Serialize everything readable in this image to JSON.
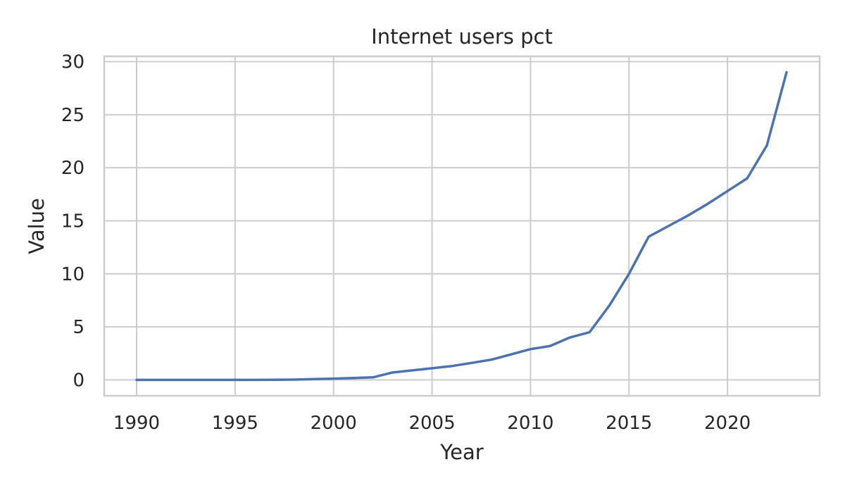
{
  "chart_data": {
    "type": "line",
    "title": "Internet users pct",
    "xlabel": "Year",
    "ylabel": "Value",
    "xlim": [
      1988.35,
      1825.65
    ],
    "ylim": [
      -1.5,
      30.5
    ],
    "xticks": [
      1990,
      1995,
      2000,
      2005,
      2010,
      2015,
      2020
    ],
    "yticks": [
      0,
      5,
      10,
      15,
      20,
      25,
      30
    ],
    "grid": true,
    "line_color": "#4c72b0",
    "series": [
      {
        "x": [
          1990,
          1991,
          1992,
          1993,
          1994,
          1995,
          1996,
          1997,
          1998,
          1999,
          2000,
          2001,
          2002,
          2003,
          2004,
          2005,
          2006,
          2007,
          2008,
          2009,
          2010,
          2011,
          2012,
          2013,
          2014,
          2015,
          2016,
          2017,
          2018,
          2019,
          2020,
          2021,
          2022,
          2023
        ],
        "values": [
          0.0,
          0.0,
          0.0,
          0.0,
          0.0,
          0.0,
          0.0,
          0.01,
          0.03,
          0.08,
          0.12,
          0.18,
          0.24,
          0.7,
          0.9,
          1.1,
          1.3,
          1.6,
          1.9,
          2.4,
          2.9,
          3.2,
          4.0,
          4.5,
          7.0,
          10.0,
          13.5,
          14.5,
          15.5,
          16.6,
          17.8,
          19.0,
          22.1,
          29.0
        ]
      }
    ]
  }
}
